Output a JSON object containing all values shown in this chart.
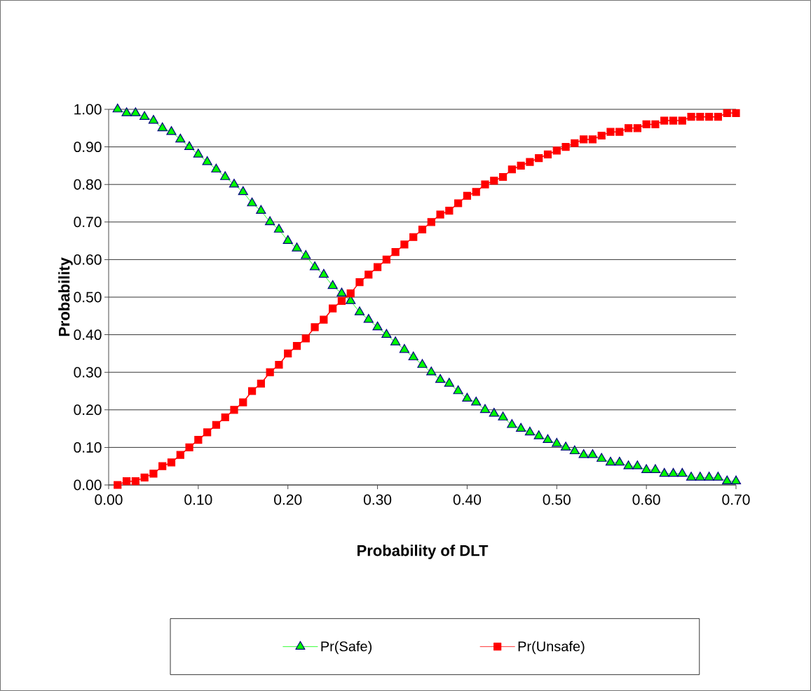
{
  "chart_data": {
    "type": "line",
    "xlabel": "Probability of DLT",
    "ylabel": "Probability",
    "x": [
      0.01,
      0.02,
      0.03,
      0.04,
      0.05,
      0.06,
      0.07,
      0.08,
      0.09,
      0.1,
      0.11,
      0.12,
      0.13,
      0.14,
      0.15,
      0.16,
      0.17,
      0.18,
      0.19,
      0.2,
      0.21,
      0.22,
      0.23,
      0.24,
      0.25,
      0.26,
      0.27,
      0.28,
      0.29,
      0.3,
      0.31,
      0.32,
      0.33,
      0.34,
      0.35,
      0.36,
      0.37,
      0.38,
      0.39,
      0.4,
      0.41,
      0.42,
      0.43,
      0.44,
      0.45,
      0.46,
      0.47,
      0.48,
      0.49,
      0.5,
      0.51,
      0.52,
      0.53,
      0.54,
      0.55,
      0.56,
      0.57,
      0.58,
      0.59,
      0.6,
      0.61,
      0.62,
      0.63,
      0.64,
      0.65,
      0.66,
      0.67,
      0.68,
      0.69,
      0.7
    ],
    "series": [
      {
        "name": "Pr(Safe)",
        "color": "#00ff00",
        "marker": "triangle",
        "values": [
          1.0,
          0.99,
          0.99,
          0.98,
          0.97,
          0.95,
          0.94,
          0.92,
          0.9,
          0.88,
          0.86,
          0.84,
          0.82,
          0.8,
          0.78,
          0.75,
          0.73,
          0.7,
          0.68,
          0.65,
          0.63,
          0.61,
          0.58,
          0.56,
          0.53,
          0.51,
          0.49,
          0.46,
          0.44,
          0.42,
          0.4,
          0.38,
          0.36,
          0.34,
          0.32,
          0.3,
          0.28,
          0.27,
          0.25,
          0.23,
          0.22,
          0.2,
          0.19,
          0.18,
          0.16,
          0.15,
          0.14,
          0.13,
          0.12,
          0.11,
          0.1,
          0.09,
          0.08,
          0.08,
          0.07,
          0.06,
          0.06,
          0.05,
          0.05,
          0.04,
          0.04,
          0.03,
          0.03,
          0.03,
          0.02,
          0.02,
          0.02,
          0.02,
          0.01,
          0.01
        ]
      },
      {
        "name": "Pr(Unsafe)",
        "color": "#ff0000",
        "marker": "square",
        "values": [
          0.0,
          0.01,
          0.01,
          0.02,
          0.03,
          0.05,
          0.06,
          0.08,
          0.1,
          0.12,
          0.14,
          0.16,
          0.18,
          0.2,
          0.22,
          0.25,
          0.27,
          0.3,
          0.32,
          0.35,
          0.37,
          0.39,
          0.42,
          0.44,
          0.47,
          0.49,
          0.51,
          0.54,
          0.56,
          0.58,
          0.6,
          0.62,
          0.64,
          0.66,
          0.68,
          0.7,
          0.72,
          0.73,
          0.75,
          0.77,
          0.78,
          0.8,
          0.81,
          0.82,
          0.84,
          0.85,
          0.86,
          0.87,
          0.88,
          0.89,
          0.9,
          0.91,
          0.92,
          0.92,
          0.93,
          0.94,
          0.94,
          0.95,
          0.95,
          0.96,
          0.96,
          0.97,
          0.97,
          0.97,
          0.98,
          0.98,
          0.98,
          0.98,
          0.99,
          0.99
        ]
      }
    ],
    "xlim": [
      0,
      0.7
    ],
    "xticks": [
      {
        "value": 0,
        "label": "0.00"
      },
      {
        "value": 0.1,
        "label": "0.10"
      },
      {
        "value": 0.2,
        "label": "0.20"
      },
      {
        "value": 0.3,
        "label": "0.30"
      },
      {
        "value": 0.4,
        "label": "0.40"
      },
      {
        "value": 0.5,
        "label": "0.50"
      },
      {
        "value": 0.6,
        "label": "0.60"
      },
      {
        "value": 0.7,
        "label": "0.70"
      }
    ],
    "ylim": [
      0,
      1
    ],
    "yticks": [
      {
        "value": 0,
        "label": "0.00"
      },
      {
        "value": 0.1,
        "label": "0.10"
      },
      {
        "value": 0.2,
        "label": "0.20"
      },
      {
        "value": 0.3,
        "label": "0.30"
      },
      {
        "value": 0.4,
        "label": "0.40"
      },
      {
        "value": 0.5,
        "label": "0.50"
      },
      {
        "value": 0.6,
        "label": "0.60"
      },
      {
        "value": 0.7,
        "label": "0.70"
      },
      {
        "value": 0.8,
        "label": "0.80"
      },
      {
        "value": 0.9,
        "label": "0.90"
      },
      {
        "value": 1,
        "label": "1.00"
      }
    ],
    "grid": "y",
    "legend": "bottom"
  }
}
